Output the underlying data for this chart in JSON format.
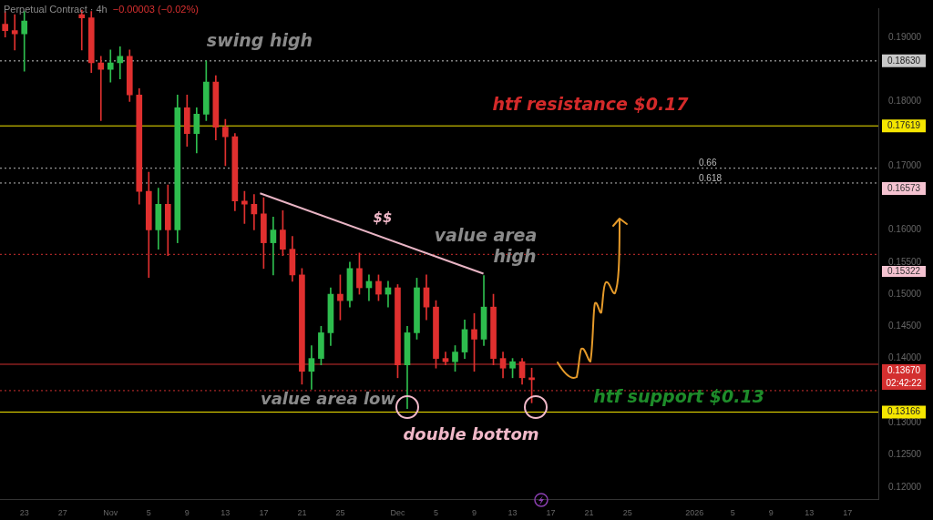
{
  "chart_data": {
    "type": "candlestick",
    "title": "Perpetual Contract · 4h",
    "subtitle": "−0.00003 (−0.02%)",
    "x": [
      "2025-10-21",
      "2025-10-22",
      "2025-10-23",
      "2025-10-29",
      "2025-10-30",
      "2025-10-31",
      "2025-11-01",
      "2025-11-02",
      "2025-11-03",
      "2025-11-04",
      "2025-11-05",
      "2025-11-06",
      "2025-11-07",
      "2025-11-08",
      "2025-11-09",
      "2025-11-10",
      "2025-11-11",
      "2025-11-12",
      "2025-11-13",
      "2025-11-14",
      "2025-11-15",
      "2025-11-16",
      "2025-11-17",
      "2025-11-18",
      "2025-11-19",
      "2025-11-20",
      "2025-11-21",
      "2025-11-22",
      "2025-11-23",
      "2025-11-24",
      "2025-11-25",
      "2025-11-26",
      "2025-11-27",
      "2025-11-28",
      "2025-11-29",
      "2025-11-30",
      "2025-12-01",
      "2025-12-02",
      "2025-12-03",
      "2025-12-04",
      "2025-12-05",
      "2025-12-06",
      "2025-12-07",
      "2025-12-08",
      "2025-12-09",
      "2025-12-10",
      "2025-12-11",
      "2025-12-12",
      "2025-12-13",
      "2025-12-14",
      "2025-12-15"
    ],
    "ohlc": [
      [
        0.192,
        0.194,
        0.19,
        0.191
      ],
      [
        0.191,
        0.1935,
        0.188,
        0.1905
      ],
      [
        0.1905,
        0.194,
        0.1847,
        0.1925
      ],
      [
        0.1935,
        0.1942,
        0.188,
        0.193
      ],
      [
        0.193,
        0.194,
        0.1845,
        0.186
      ],
      [
        0.186,
        0.187,
        0.177,
        0.185
      ],
      [
        0.185,
        0.188,
        0.183,
        0.186
      ],
      [
        0.186,
        0.1885,
        0.1835,
        0.187
      ],
      [
        0.187,
        0.188,
        0.18,
        0.181
      ],
      [
        0.181,
        0.182,
        0.164,
        0.166
      ],
      [
        0.166,
        0.169,
        0.1526,
        0.16
      ],
      [
        0.16,
        0.1665,
        0.157,
        0.164
      ],
      [
        0.164,
        0.167,
        0.156,
        0.16
      ],
      [
        0.16,
        0.181,
        0.158,
        0.179
      ],
      [
        0.179,
        0.181,
        0.173,
        0.175
      ],
      [
        0.175,
        0.179,
        0.172,
        0.178
      ],
      [
        0.178,
        0.1863,
        0.177,
        0.183
      ],
      [
        0.183,
        0.184,
        0.174,
        0.176
      ],
      [
        0.176,
        0.1772,
        0.17,
        0.1745
      ],
      [
        0.1745,
        0.175,
        0.163,
        0.1645
      ],
      [
        0.1645,
        0.166,
        0.161,
        0.164
      ],
      [
        0.164,
        0.1655,
        0.16,
        0.1625
      ],
      [
        0.1625,
        0.165,
        0.154,
        0.158
      ],
      [
        0.158,
        0.162,
        0.153,
        0.16
      ],
      [
        0.16,
        0.163,
        0.156,
        0.157
      ],
      [
        0.157,
        0.159,
        0.152,
        0.153
      ],
      [
        0.153,
        0.154,
        0.136,
        0.138
      ],
      [
        0.138,
        0.142,
        0.1352,
        0.14
      ],
      [
        0.14,
        0.145,
        0.139,
        0.144
      ],
      [
        0.144,
        0.151,
        0.142,
        0.15
      ],
      [
        0.15,
        0.153,
        0.146,
        0.149
      ],
      [
        0.149,
        0.155,
        0.148,
        0.154
      ],
      [
        0.154,
        0.1564,
        0.15,
        0.151
      ],
      [
        0.151,
        0.153,
        0.149,
        0.152
      ],
      [
        0.152,
        0.153,
        0.149,
        0.15
      ],
      [
        0.15,
        0.152,
        0.148,
        0.151
      ],
      [
        0.151,
        0.1515,
        0.137,
        0.139
      ],
      [
        0.139,
        0.145,
        0.1322,
        0.144
      ],
      [
        0.144,
        0.1525,
        0.143,
        0.151
      ],
      [
        0.151,
        0.153,
        0.146,
        0.148
      ],
      [
        0.148,
        0.149,
        0.1385,
        0.14
      ],
      [
        0.14,
        0.141,
        0.139,
        0.1395
      ],
      [
        0.1395,
        0.142,
        0.138,
        0.141
      ],
      [
        0.141,
        0.146,
        0.14,
        0.1445
      ],
      [
        0.1445,
        0.147,
        0.138,
        0.143
      ],
      [
        0.143,
        0.1529,
        0.142,
        0.148
      ],
      [
        0.148,
        0.15,
        0.139,
        0.14
      ],
      [
        0.14,
        0.141,
        0.137,
        0.1385
      ],
      [
        0.1385,
        0.14,
        0.137,
        0.1395
      ],
      [
        0.1395,
        0.14,
        0.136,
        0.137
      ],
      [
        0.137,
        0.1385,
        0.1331,
        0.1367
      ]
    ],
    "series": [
      {
        "type": "line",
        "color": "#e8b4c4",
        "x": [
          "2025-11-16T15:00",
          "2025-12-09T23:00"
        ],
        "values": [
          0.1657,
          0.1532
        ]
      }
    ],
    "xlim": [
      "2025-10-20T11:00",
      "2026-01-20T05:00"
    ],
    "xticks": [
      {
        "value": "2025-10-23",
        "label": "23"
      },
      {
        "value": "2025-10-27",
        "label": "27"
      },
      {
        "value": "2025-11-01",
        "label": "Nov"
      },
      {
        "value": "2025-11-05",
        "label": "5"
      },
      {
        "value": "2025-11-09",
        "label": "9"
      },
      {
        "value": "2025-11-13",
        "label": "13"
      },
      {
        "value": "2025-11-17",
        "label": "17"
      },
      {
        "value": "2025-11-21",
        "label": "21"
      },
      {
        "value": "2025-11-25",
        "label": "25"
      },
      {
        "value": "2025-12-01",
        "label": "Dec"
      },
      {
        "value": "2025-12-05",
        "label": "5"
      },
      {
        "value": "2025-12-09",
        "label": "9"
      },
      {
        "value": "2025-12-13",
        "label": "13"
      },
      {
        "value": "2025-12-17",
        "label": "17"
      },
      {
        "value": "2025-12-21",
        "label": "21"
      },
      {
        "value": "2025-12-25",
        "label": "25"
      },
      {
        "value": "2026-01-01",
        "label": "2026"
      },
      {
        "value": "2026-01-05",
        "label": "5"
      },
      {
        "value": "2026-01-09",
        "label": "9"
      },
      {
        "value": "2026-01-13",
        "label": "13"
      },
      {
        "value": "2026-01-17",
        "label": "17"
      }
    ],
    "ylim": [
      0.1181,
      0.1945
    ],
    "yticks": [
      {
        "value": 0.19,
        "label": "0.19000"
      },
      {
        "value": 0.18,
        "label": "0.18000"
      },
      {
        "value": 0.17,
        "label": "0.17000"
      },
      {
        "value": 0.16,
        "label": "0.16000"
      },
      {
        "value": 0.155,
        "label": "0.15500"
      },
      {
        "value": 0.15,
        "label": "0.15000"
      },
      {
        "value": 0.145,
        "label": "0.14500"
      },
      {
        "value": 0.14,
        "label": "0.14000"
      },
      {
        "value": 0.13,
        "label": "0.13000"
      },
      {
        "value": 0.125,
        "label": "0.12500"
      },
      {
        "value": 0.12,
        "label": "0.12000"
      }
    ],
    "ref_lines": [
      {
        "axis": "y",
        "value": 0.1863,
        "label": "0.18630",
        "color": "#c8c8c8",
        "line_style": "dotted"
      },
      {
        "axis": "y",
        "value": 0.17619,
        "label": "0.17619",
        "color": "#f5e600",
        "line_style": "solid"
      },
      {
        "axis": "y",
        "value": 0.1696,
        "color": "#bbbbbb",
        "line_style": "dotted"
      },
      {
        "axis": "y",
        "value": 0.1673,
        "color": "#bbbbbb",
        "line_style": "dotted"
      },
      {
        "axis": "y",
        "value": 0.1562,
        "color": "#d03030",
        "line_style": "dotted"
      },
      {
        "axis": "y",
        "value": 0.1391,
        "color": "#d03030",
        "line_style": "solid"
      },
      {
        "axis": "y",
        "value": 0.135,
        "color": "#d03030",
        "line_style": "dotted"
      },
      {
        "axis": "y",
        "value": 0.13166,
        "label": "0.13166",
        "color": "#f5e600",
        "line_style": "solid"
      }
    ],
    "annotations": [
      "swing high",
      "htf resistance $0.17",
      "$$",
      "value area",
      "high",
      "value area low",
      "double bottom",
      "htf support $0.13",
      "0.66",
      "0.618",
      "0.16573",
      "0.15322",
      "0.13670",
      "02:42:22"
    ],
    "grid": false,
    "legend": false
  }
}
